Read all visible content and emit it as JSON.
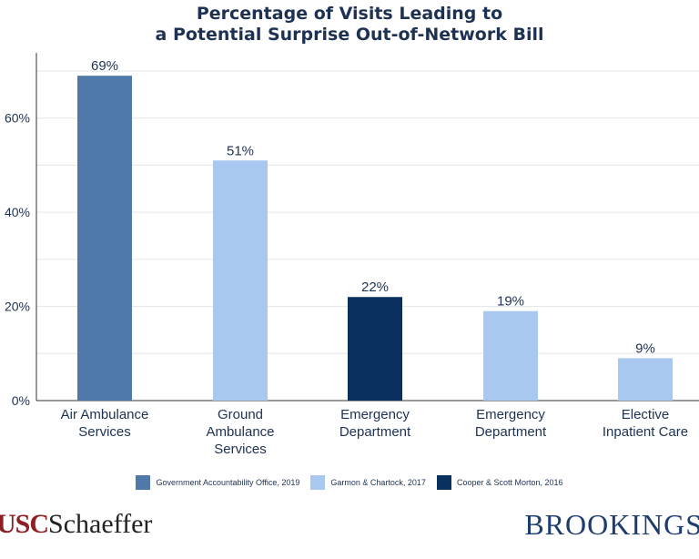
{
  "chart_data": {
    "type": "bar",
    "title_lines": [
      "Percentage of Visits Leading to",
      "a Potential Surprise Out-of-Network Bill"
    ],
    "categories": [
      [
        "Air Ambulance",
        "Services"
      ],
      [
        "Ground",
        "Ambulance",
        "Services"
      ],
      [
        "Emergency",
        "Department"
      ],
      [
        "Emergency",
        "Department"
      ],
      [
        "Elective",
        "Inpatient Care"
      ]
    ],
    "values": [
      69,
      51,
      22,
      19,
      9
    ],
    "value_labels": [
      "69%",
      "51%",
      "22%",
      "19%",
      "9%"
    ],
    "bar_source": [
      0,
      1,
      2,
      1,
      1
    ],
    "ylim": [
      0,
      70
    ],
    "yticks": [
      0,
      20,
      40,
      60
    ],
    "ytick_labels": [
      "0%",
      "20%",
      "40%",
      "60%"
    ],
    "grid": true,
    "legend_position": "bottom",
    "legend": [
      {
        "name": "Government Accountability Office, 2019",
        "color": "#4f79a8"
      },
      {
        "name": "Garmon & Chartock, 2017",
        "color": "#a8c8ef"
      },
      {
        "name": "Cooper & Scott Morton, 2016",
        "color": "#09305f"
      }
    ]
  },
  "logos": {
    "left_usc": "USC",
    "left_name": "Schaeffer",
    "right": "BROOKINGS"
  }
}
